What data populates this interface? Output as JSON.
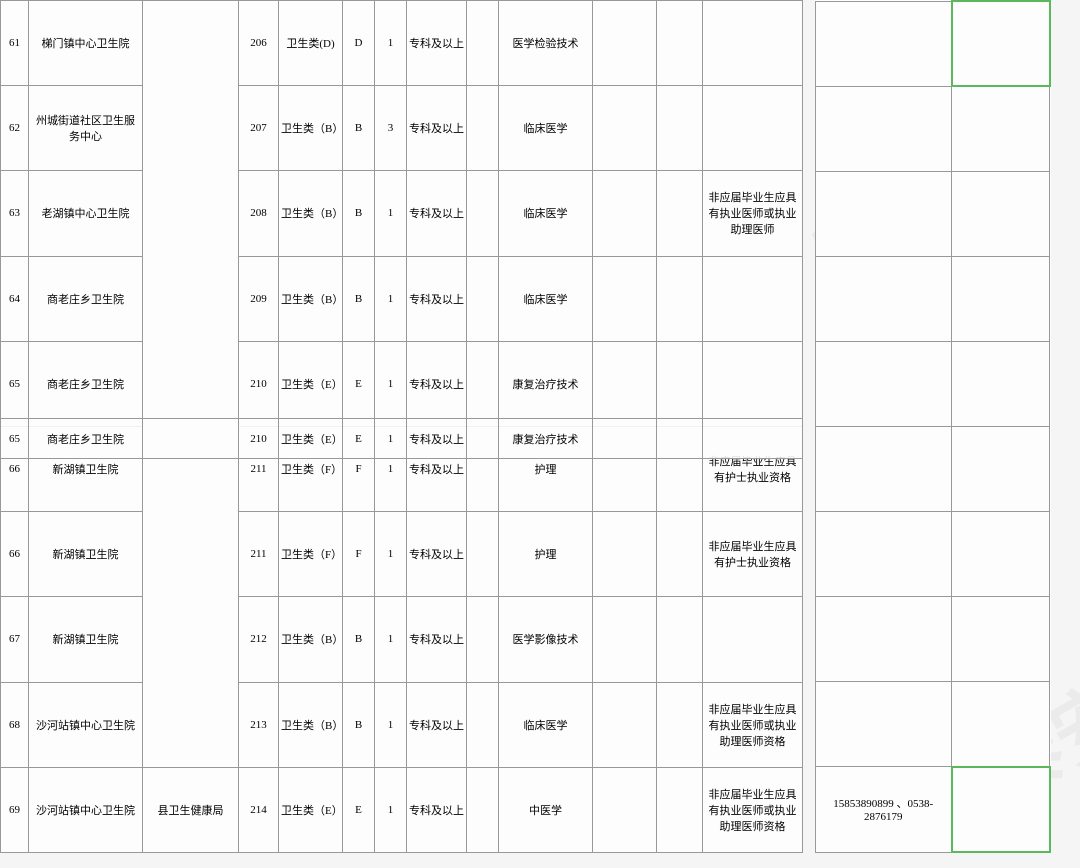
{
  "watermark_text": "最泰安",
  "column_widths": {
    "idx": 28,
    "name": 114,
    "dept": 96,
    "code": 40,
    "cat": 64,
    "letter": 32,
    "num": 32,
    "edu": 60,
    "blank1": 32,
    "major": 94,
    "blank2": 64,
    "blank3": 46,
    "req": 100,
    "side1": 136,
    "side2": 98
  },
  "colors": {
    "border": "#999999",
    "background": "#fdfdfd",
    "watermark": "rgba(0,0,0,0.04)",
    "green_border": "#5cb85c"
  },
  "rows": [
    {
      "idx": "61",
      "name": "梯门镇中心卫生院",
      "code": "206",
      "cat": "卫生类(D)",
      "letter": "D",
      "num": "1",
      "edu": "专科及以上",
      "major": "医学检验技术",
      "req": "",
      "side1": "",
      "side2": "",
      "green": true
    },
    {
      "idx": "62",
      "name": "州城街道社区卫生服务中心",
      "code": "207",
      "cat": "卫生类（B）",
      "letter": "B",
      "num": "3",
      "edu": "专科及以上",
      "major": "临床医学",
      "req": "",
      "side1": "",
      "side2": "",
      "green": false
    },
    {
      "idx": "63",
      "name": "老湖镇中心卫生院",
      "code": "208",
      "cat": "卫生类（B）",
      "letter": "B",
      "num": "1",
      "edu": "专科及以上",
      "major": "临床医学",
      "req": "非应届毕业生应具有执业医师或执业助理医师",
      "side1": "",
      "side2": "",
      "green": false
    },
    {
      "idx": "64",
      "name": "商老庄乡卫生院",
      "code": "209",
      "cat": "卫生类（B）",
      "letter": "B",
      "num": "1",
      "edu": "专科及以上",
      "major": "临床医学",
      "req": "",
      "side1": "",
      "side2": "",
      "green": false
    },
    {
      "idx": "65",
      "name": "商老庄乡卫生院",
      "code": "210",
      "cat": "卫生类（E）",
      "letter": "E",
      "num": "1",
      "edu": "专科及以上",
      "major": "康复治疗技术",
      "req": "",
      "side1": "",
      "side2": "",
      "green": false
    },
    {
      "idx": "66",
      "name": "新湖镇卫生院",
      "code": "211",
      "cat": "卫生类（F）",
      "letter": "F",
      "num": "1",
      "edu": "专科及以上",
      "major": "护理",
      "req": "非应届毕业生应具有护士执业资格",
      "side1": "",
      "side2": "",
      "green": false
    },
    {
      "idx": "66",
      "name": "新湖镇卫生院",
      "code": "211",
      "cat": "卫生类（F）",
      "letter": "F",
      "num": "1",
      "edu": "专科及以上",
      "major": "护理",
      "req": "非应届毕业生应具有护士执业资格",
      "side1": "",
      "side2": "",
      "green": false
    },
    {
      "idx": "67",
      "name": "新湖镇卫生院",
      "code": "212",
      "cat": "卫生类（B）",
      "letter": "B",
      "num": "1",
      "edu": "专科及以上",
      "major": "医学影像技术",
      "req": "",
      "side1": "",
      "side2": "",
      "green": false
    },
    {
      "idx": "68",
      "name": "沙河站镇中心卫生院",
      "code": "213",
      "cat": "卫生类（B）",
      "letter": "B",
      "num": "1",
      "edu": "专科及以上",
      "major": "临床医学",
      "req": "非应届毕业生应具有执业医师或执业助理医师资格",
      "side1": "",
      "side2": "",
      "green": false
    },
    {
      "idx": "69",
      "name": "沙河站镇中心卫生院",
      "code": "214",
      "cat": "卫生类（E）",
      "letter": "E",
      "num": "1",
      "edu": "专科及以上",
      "major": "中医学",
      "req": "非应届毕业生应具有执业医师或执业助理医师资格",
      "side1": "15853890899 、0538-2876179",
      "side2": "",
      "green": true,
      "dept": "县卫生健康局"
    }
  ],
  "overlay": {
    "idx": "65",
    "name": "商老庄乡卫生院",
    "code": "210",
    "cat": "卫生类（E）",
    "letter": "E",
    "num": "1",
    "edu": "专科及以上",
    "major": "康复治疗技术"
  },
  "dept_label": ""
}
